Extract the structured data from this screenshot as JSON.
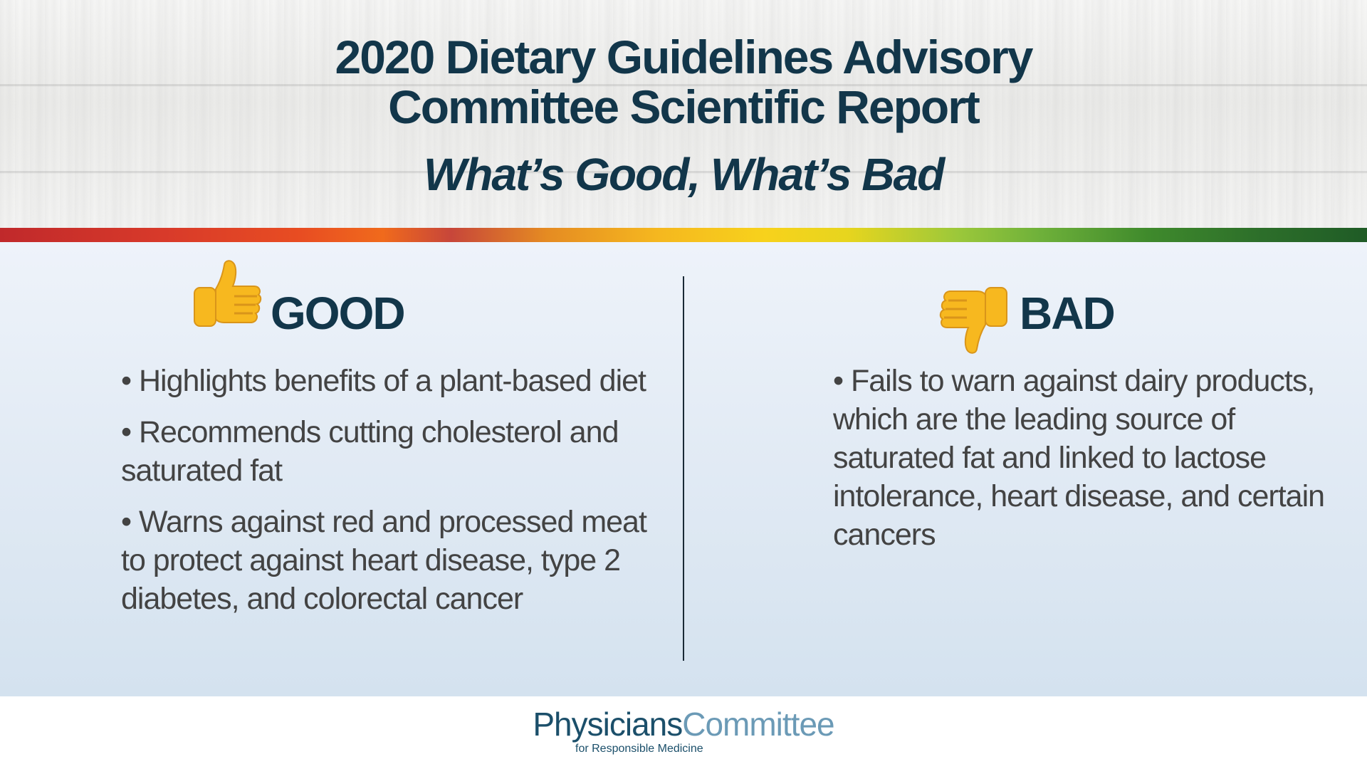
{
  "header": {
    "title_line1": "2020 Dietary Guidelines Advisory",
    "title_line2": "Committee Scientific Report",
    "subtitle": "What’s Good, What’s Bad"
  },
  "good": {
    "heading": "GOOD",
    "icon": "thumbs-up-icon",
    "items": [
      "• Highlights benefits of a plant-based diet",
      "• Recommends cutting cholesterol and saturated fat",
      "• Warns against red and processed meat to protect against heart disease, type 2 diabetes, and colorectal cancer"
    ]
  },
  "bad": {
    "heading": "BAD",
    "icon": "thumbs-down-icon",
    "items": [
      "• Fails to warn against dairy products, which are the leading source of saturated fat and linked to lactose intolerance, heart disease, and certain cancers"
    ]
  },
  "footer": {
    "logo_part1": "Physicians",
    "logo_part2": "Committee",
    "logo_sub": "for Responsible Medicine"
  },
  "colors": {
    "title": "#12364a",
    "body_text": "#434343",
    "logo_dark": "#1b4f6a",
    "logo_light": "#6b9ab6",
    "thumb": "#f7b81f"
  }
}
